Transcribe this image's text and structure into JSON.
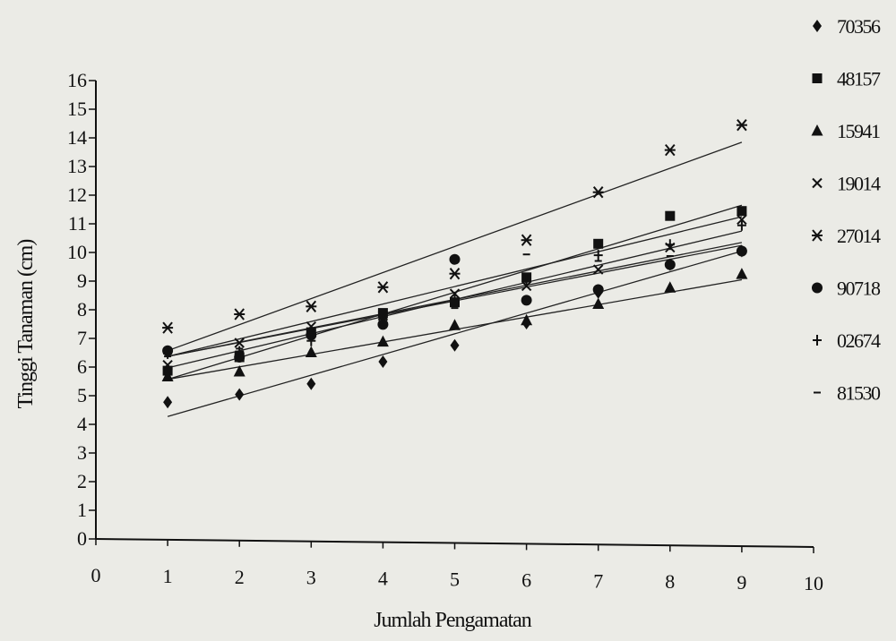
{
  "chart_data": {
    "type": "scatter",
    "title": "",
    "xlabel": "Jumlah Pengamatan",
    "ylabel": "Tinggi Tanaman (cm)",
    "xlim": [
      0,
      10
    ],
    "ylim": [
      0,
      16
    ],
    "x_ticks": [
      0,
      1,
      2,
      3,
      4,
      5,
      6,
      7,
      8,
      9,
      10
    ],
    "y_ticks": [
      0,
      1,
      2,
      3,
      4,
      5,
      6,
      7,
      8,
      9,
      10,
      11,
      12,
      13,
      14,
      15,
      16
    ],
    "grid": false,
    "legend_position": "right",
    "x": [
      1,
      2,
      3,
      4,
      5,
      6,
      7,
      8,
      9
    ],
    "series": [
      {
        "name": "70356",
        "marker": "diamond",
        "values": [
          4.8,
          5.1,
          5.5,
          6.3,
          6.9,
          7.7,
          8.8,
          9.8,
          10.3
        ],
        "trend": [
          4.3,
          10.3
        ]
      },
      {
        "name": "48157",
        "marker": "square",
        "values": [
          5.9,
          6.4,
          7.3,
          8.0,
          8.4,
          9.3,
          10.5,
          11.5,
          11.7
        ],
        "trend": [
          5.6,
          11.9
        ]
      },
      {
        "name": "15941",
        "marker": "triangle",
        "values": [
          5.7,
          5.9,
          6.6,
          7.0,
          7.6,
          7.8,
          8.4,
          9.0,
          9.5
        ],
        "trend": [
          5.6,
          9.3
        ]
      },
      {
        "name": "19014",
        "marker": "x",
        "values": [
          6.1,
          6.9,
          7.5,
          7.9,
          8.7,
          9.0,
          9.6,
          10.4,
          11.4
        ],
        "trend": [
          6.0,
          11.0
        ]
      },
      {
        "name": "27014",
        "marker": "star",
        "values": [
          7.4,
          7.9,
          8.2,
          8.9,
          9.4,
          10.6,
          12.3,
          13.8,
          14.7
        ],
        "trend": [
          6.6,
          14.1
        ]
      },
      {
        "name": "90718",
        "marker": "circle",
        "values": [
          6.6,
          6.4,
          7.2,
          7.6,
          9.9,
          8.5,
          8.9,
          9.8,
          10.3
        ],
        "trend": [
          6.4,
          10.5
        ]
      },
      {
        "name": "02674",
        "marker": "plus",
        "values": [
          6.5,
          6.6,
          7.0,
          7.8,
          8.5,
          9.2,
          10.1,
          10.5,
          11.2
        ],
        "trend": [
          6.4,
          11.5
        ]
      },
      {
        "name": "81530",
        "marker": "dash",
        "values": [
          6.4,
          6.7,
          7.3,
          7.6,
          8.2,
          10.1,
          9.9,
          10.1,
          10.3
        ],
        "trend": [
          6.4,
          10.6
        ]
      }
    ]
  }
}
